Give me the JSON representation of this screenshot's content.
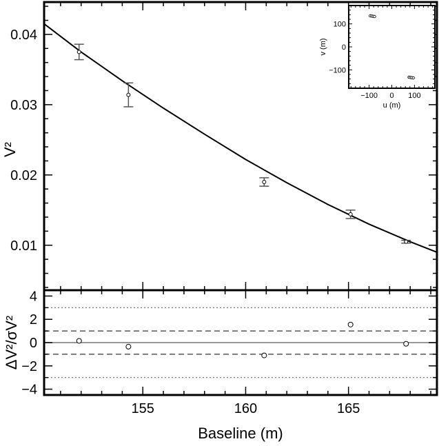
{
  "chart_data": [
    {
      "type": "scatter",
      "panel": "main",
      "xlabel": "Baseline (m)",
      "ylabel": "V²",
      "xlim": [
        150.2,
        169.3
      ],
      "ylim": [
        0.0036,
        0.0446
      ],
      "yticks": [
        0.01,
        0.02,
        0.03,
        0.04
      ],
      "ytick_labels": [
        "0.01",
        "0.02",
        "0.03",
        "0.04"
      ],
      "xticks_major": [
        155,
        160,
        165
      ],
      "grid": false,
      "legend": "none",
      "series": [
        {
          "points": [
            {
              "x": 151.9,
              "y": 0.0375,
              "err": 0.0011
            },
            {
              "x": 154.3,
              "y": 0.0314,
              "err": 0.0017
            },
            {
              "x": 160.9,
              "y": 0.019,
              "err": 0.0006
            },
            {
              "x": 165.1,
              "y": 0.0144,
              "err": 0.0006
            },
            {
              "x": 167.8,
              "y": 0.0105,
              "err": 0.0002
            }
          ]
        }
      ],
      "model_curve": {
        "x": [
          150.2,
          152,
          154,
          156,
          158,
          160,
          162,
          164,
          166,
          168,
          169.3
        ],
        "y": [
          0.0415,
          0.0375,
          0.0334,
          0.0295,
          0.0258,
          0.0222,
          0.0189,
          0.0158,
          0.013,
          0.0105,
          0.009
        ]
      }
    },
    {
      "type": "scatter",
      "panel": "residuals",
      "xlabel": "Baseline (m)",
      "ylabel": "ΔV²/σV²",
      "xlim": [
        150.2,
        169.3
      ],
      "ylim": [
        -4.5,
        4.5
      ],
      "yticks": [
        -4,
        -2,
        0,
        2,
        4
      ],
      "xticks": [
        155,
        160,
        165
      ],
      "xtick_labels": [
        "155",
        "160",
        "165"
      ],
      "reference_lines": [
        {
          "y": 0,
          "style": "solid"
        },
        {
          "y": 1,
          "style": "dashed"
        },
        {
          "y": -1,
          "style": "dashed"
        },
        {
          "y": 3,
          "style": "dotted"
        },
        {
          "y": -3,
          "style": "dotted"
        }
      ],
      "series": [
        {
          "points": [
            {
              "x": 151.9,
              "y": 0.15
            },
            {
              "x": 154.3,
              "y": -0.35
            },
            {
              "x": 160.9,
              "y": -1.1
            },
            {
              "x": 165.1,
              "y": 1.55
            },
            {
              "x": 167.8,
              "y": -0.1
            }
          ]
        }
      ]
    },
    {
      "type": "scatter",
      "panel": "inset-uv",
      "xlabel": "u (m)",
      "ylabel": "v (m)",
      "xlim": [
        -190,
        190
      ],
      "ylim": [
        -180,
        180
      ],
      "xticks": [
        -100,
        0,
        100
      ],
      "yticks": [
        -100,
        0,
        100
      ],
      "series": [
        {
          "points": [
            {
              "x": -95,
              "y": 135
            },
            {
              "x": -88,
              "y": 134
            },
            {
              "x": -82,
              "y": 133
            },
            {
              "x": -76,
              "y": 132
            },
            {
              "x": 76,
              "y": -132
            },
            {
              "x": 82,
              "y": -133
            },
            {
              "x": 88,
              "y": -134
            },
            {
              "x": 95,
              "y": -135
            }
          ]
        }
      ]
    }
  ]
}
